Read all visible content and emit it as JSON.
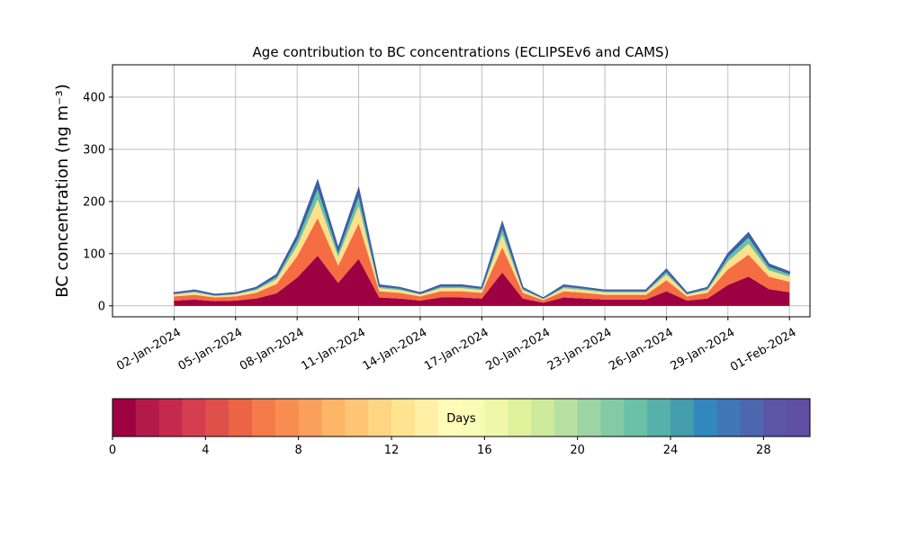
{
  "chart_data": {
    "type": "stacked_area",
    "title": "Age contribution to BC concentrations (ECLIPSEv6 and CAMS)",
    "y_label": "BC concentration (ng m⁻³)",
    "x": [
      "2024-01-02",
      "2024-01-03",
      "2024-01-04",
      "2024-01-05",
      "2024-01-06",
      "2024-01-07",
      "2024-01-08",
      "2024-01-09",
      "2024-01-10",
      "2024-01-11",
      "2024-01-12",
      "2024-01-13",
      "2024-01-14",
      "2024-01-15",
      "2024-01-16",
      "2024-01-17",
      "2024-01-18",
      "2024-01-19",
      "2024-01-20",
      "2024-01-21",
      "2024-01-22",
      "2024-01-23",
      "2024-01-24",
      "2024-01-25",
      "2024-01-26",
      "2024-01-27",
      "2024-01-28",
      "2024-01-29",
      "2024-01-30",
      "2024-01-31",
      "2024-02-01"
    ],
    "series": [
      {
        "color": "#9e0142",
        "values": [
          10,
          12,
          9,
          10,
          14,
          24,
          54,
          96,
          44,
          90,
          16,
          14,
          10,
          16,
          16,
          14,
          64,
          14,
          6,
          16,
          14,
          12,
          12,
          12,
          28,
          10,
          14,
          40,
          56,
          32,
          26
        ]
      },
      {
        "color": "#f46d43",
        "values": [
          8,
          9,
          7,
          8,
          11,
          18,
          41,
          72,
          33,
          68,
          12,
          11,
          8,
          12,
          12,
          11,
          48,
          11,
          5,
          12,
          11,
          9,
          9,
          9,
          21,
          8,
          11,
          30,
          42,
          24,
          20
        ]
      },
      {
        "color": "#fee08b",
        "values": [
          4,
          5,
          3,
          4,
          5,
          9,
          20,
          36,
          17,
          34,
          6,
          5,
          4,
          6,
          6,
          5,
          24,
          5,
          2,
          6,
          5,
          5,
          5,
          5,
          11,
          4,
          5,
          15,
          21,
          12,
          10
        ]
      },
      {
        "color": "#66c2a5",
        "values": [
          2,
          3,
          2,
          2,
          4,
          6,
          14,
          24,
          11,
          22,
          4,
          4,
          2,
          4,
          4,
          4,
          16,
          4,
          2,
          4,
          4,
          3,
          3,
          3,
          7,
          2,
          4,
          10,
          14,
          8,
          6
        ]
      },
      {
        "color": "#3f5fa6",
        "values": [
          1,
          1,
          1,
          1,
          1,
          3,
          6,
          12,
          5,
          11,
          2,
          1,
          1,
          2,
          2,
          1,
          8,
          1,
          0,
          2,
          1,
          1,
          1,
          1,
          3,
          1,
          1,
          5,
          7,
          4,
          3
        ]
      }
    ],
    "xlim": [
      "2023-12-30",
      "2024-02-02"
    ],
    "xticks": [
      {
        "value": "2024-01-02",
        "label": "02-Jan-2024"
      },
      {
        "value": "2024-01-05",
        "label": "05-Jan-2024"
      },
      {
        "value": "2024-01-08",
        "label": "08-Jan-2024"
      },
      {
        "value": "2024-01-11",
        "label": "11-Jan-2024"
      },
      {
        "value": "2024-01-14",
        "label": "14-Jan-2024"
      },
      {
        "value": "2024-01-17",
        "label": "17-Jan-2024"
      },
      {
        "value": "2024-01-20",
        "label": "20-Jan-2024"
      },
      {
        "value": "2024-01-23",
        "label": "23-Jan-2024"
      },
      {
        "value": "2024-01-26",
        "label": "26-Jan-2024"
      },
      {
        "value": "2024-01-29",
        "label": "29-Jan-2024"
      },
      {
        "value": "2024-02-01",
        "label": "01-Feb-2024"
      }
    ],
    "ylim": [
      -21,
      462
    ],
    "yticks": [
      0,
      100,
      200,
      300,
      400
    ],
    "grid": true,
    "colorbar": {
      "label": "Days",
      "lim": [
        0,
        30
      ],
      "ticks": [
        0,
        4,
        8,
        12,
        16,
        20,
        24,
        28
      ],
      "colors": [
        "#9e0142",
        "#b31a4a",
        "#c52a4c",
        "#d53e4f",
        "#e0504a",
        "#ea6445",
        "#f47a4a",
        "#f88d52",
        "#fba05c",
        "#fdb567",
        "#fec574",
        "#fed582",
        "#fee391",
        "#fff0a6",
        "#fffbb8",
        "#f8fcb4",
        "#eef8a8",
        "#e0f29b",
        "#cdea9d",
        "#b7e0a2",
        "#9dd5a4",
        "#83cba5",
        "#6bc1a5",
        "#56b1aa",
        "#449dab",
        "#3288bd",
        "#3f77b5",
        "#4d66ad",
        "#5a55a5",
        "#5e4fa2"
      ]
    }
  }
}
